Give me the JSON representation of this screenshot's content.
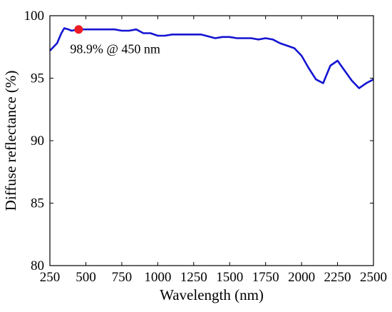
{
  "chart_data": {
    "type": "line",
    "xlabel": "Wavelength (nm)",
    "ylabel": "Diffuse reflectance (%)",
    "xlim": [
      250,
      2500
    ],
    "ylim": [
      80,
      100
    ],
    "xticks": [
      250,
      500,
      750,
      1000,
      1250,
      1500,
      1750,
      2000,
      2250,
      2500
    ],
    "yticks": [
      80,
      85,
      90,
      95,
      100
    ],
    "grid": false,
    "line_color": "#1414d2",
    "marker_color": "#ee1c24",
    "series": [
      {
        "x": [
          250,
          300,
          330,
          350,
          380,
          400,
          450,
          500,
          600,
          700,
          750,
          800,
          850,
          900,
          950,
          1000,
          1050,
          1100,
          1200,
          1300,
          1400,
          1450,
          1500,
          1550,
          1600,
          1650,
          1700,
          1750,
          1800,
          1850,
          1900,
          1950,
          2000,
          2050,
          2100,
          2150,
          2200,
          2250,
          2300,
          2350,
          2400,
          2450,
          2500
        ],
        "y": [
          97.2,
          97.8,
          98.6,
          99.0,
          98.9,
          98.8,
          98.9,
          98.9,
          98.9,
          98.9,
          98.8,
          98.8,
          98.9,
          98.6,
          98.6,
          98.4,
          98.4,
          98.5,
          98.5,
          98.5,
          98.2,
          98.3,
          98.3,
          98.2,
          98.2,
          98.2,
          98.1,
          98.2,
          98.1,
          97.8,
          97.6,
          97.4,
          96.8,
          95.8,
          94.9,
          94.6,
          96.0,
          96.4,
          95.6,
          94.8,
          94.2,
          94.6,
          94.9
        ]
      }
    ],
    "annotation": {
      "x": 450,
      "y": 98.9,
      "text": "98.9% @ 450 nm"
    }
  }
}
